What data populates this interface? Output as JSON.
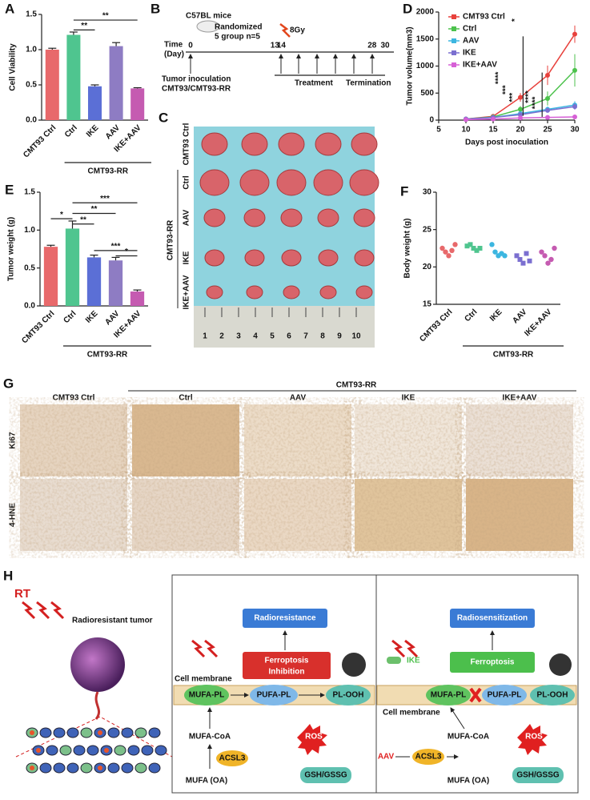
{
  "panel_labels": [
    "A",
    "B",
    "C",
    "D",
    "E",
    "F",
    "G",
    "H"
  ],
  "chart_data": [
    {
      "type": "bar",
      "ylabel": "Cell Viability",
      "categories": [
        "CMT93 Ctrl",
        "Ctrl",
        "IKE",
        "AAV",
        "IKE+AAV"
      ],
      "values": [
        1.0,
        1.21,
        0.48,
        1.05,
        0.45
      ],
      "errors": [
        0.02,
        0.04,
        0.02,
        0.05,
        0.01
      ],
      "colors": [
        "#e8696b",
        "#4fc58f",
        "#5b6fd6",
        "#8e7cc3",
        "#c55bb1"
      ],
      "ylim": [
        0,
        1.5
      ],
      "yticks": [
        {
          "value": 0,
          "label": "0.0"
        },
        {
          "value": 0.5,
          "label": "0.5"
        },
        {
          "value": 1,
          "label": "1.0"
        },
        {
          "value": 1.5,
          "label": "1.5"
        }
      ],
      "group_label": "CMT93-RR",
      "annotations": [
        "**",
        "**"
      ]
    },
    {
      "type": "line",
      "xlabel": "Days post inoculation",
      "ylabel": "Tumor volume(mm3)",
      "x": [
        10,
        15,
        20,
        25,
        30
      ],
      "xlim": [
        5,
        30
      ],
      "xticks": [
        5,
        10,
        15,
        20,
        25,
        30
      ],
      "ylim": [
        0,
        2000
      ],
      "yticks": [
        0,
        500,
        1000,
        1500,
        2000
      ],
      "series": [
        {
          "name": "CMT93 Ctrl",
          "color": "#e8413c",
          "values": [
            20,
            70,
            420,
            830,
            1590
          ],
          "errors": [
            5,
            20,
            80,
            180,
            160
          ]
        },
        {
          "name": "Ctrl",
          "color": "#4cc24c",
          "values": [
            20,
            60,
            200,
            400,
            920
          ],
          "errors": [
            5,
            15,
            60,
            130,
            300
          ]
        },
        {
          "name": "AAV",
          "color": "#3cb6e0",
          "values": [
            20,
            50,
            120,
            200,
            280
          ],
          "errors": [
            5,
            10,
            30,
            50,
            70
          ]
        },
        {
          "name": "IKE",
          "color": "#7b6fd0",
          "values": [
            20,
            50,
            100,
            180,
            250
          ],
          "errors": [
            5,
            10,
            25,
            40,
            60
          ]
        },
        {
          "name": "IKE+AAV",
          "color": "#d660d6",
          "values": [
            10,
            20,
            40,
            50,
            60
          ],
          "errors": [
            3,
            5,
            10,
            10,
            10
          ]
        }
      ],
      "annotations": [
        "****",
        "***",
        "***",
        "****",
        "****",
        "*"
      ]
    },
    {
      "type": "bar",
      "ylabel": "Tumor weight (g)",
      "categories": [
        "CMT93 Ctrl",
        "Ctrl",
        "IKE",
        "AAV",
        "IKE+AAV"
      ],
      "values": [
        0.78,
        1.02,
        0.64,
        0.6,
        0.19
      ],
      "errors": [
        0.02,
        0.1,
        0.03,
        0.04,
        0.02
      ],
      "colors": [
        "#e8696b",
        "#4fc58f",
        "#5b6fd6",
        "#8e7cc3",
        "#c55bb1"
      ],
      "ylim": [
        0,
        1.5
      ],
      "yticks": [
        {
          "value": 0,
          "label": "0.0"
        },
        {
          "value": 0.5,
          "label": "0.5"
        },
        {
          "value": 1,
          "label": "1.0"
        },
        {
          "value": 1.5,
          "label": "1.5"
        }
      ],
      "group_label": "CMT93-RR",
      "annotations": [
        "*",
        "**",
        "**",
        "***",
        "***",
        "*"
      ]
    },
    {
      "type": "dot",
      "ylabel": "Body weight (g)",
      "categories": [
        "CMT93 Ctrl",
        "Ctrl",
        "IKE",
        "AAV",
        "IKE+AAV"
      ],
      "values": [
        [
          22.5,
          22,
          21.5,
          22.2,
          23
        ],
        [
          22.8,
          23,
          22.5,
          22.2,
          22.5
        ],
        [
          23,
          22,
          21.5,
          21.8,
          21.5
        ],
        [
          21.5,
          21,
          20.5,
          21.8,
          20.8
        ],
        [
          22,
          21.5,
          20.5,
          21,
          22.5
        ]
      ],
      "colors": [
        "#e8696b",
        "#4fc58f",
        "#3cb6e0",
        "#7b6fd0",
        "#c55bb1"
      ],
      "ylim": [
        15,
        30
      ],
      "yticks": [
        15,
        20,
        25,
        30
      ],
      "group_label": "CMT93-RR"
    }
  ],
  "timeline": {
    "mice": "C57BL mice",
    "randomized": [
      "Randomized",
      "5 group n=5"
    ],
    "dose": "8Gy",
    "axis": [
      "Time",
      "(Day)"
    ],
    "days": [
      0,
      13,
      14,
      28,
      30
    ],
    "inoculation": [
      "Tumor inoculation",
      "CMT93/CMT93-RR"
    ],
    "treatment": "Treatment",
    "termination": "Termination"
  },
  "photo": {
    "rows": [
      "CMT93 Ctrl",
      "Ctrl",
      "AAV",
      "IKE",
      "IKE+AAV"
    ],
    "group": "CMT93-RR",
    "ruler": [
      1,
      2,
      3,
      4,
      5,
      6,
      7,
      8,
      9,
      10
    ]
  },
  "histology": {
    "group": "CMT93-RR",
    "columns": [
      "CMT93 Ctrl",
      "Ctrl",
      "AAV",
      "IKE",
      "IKE+AAV"
    ],
    "rows": [
      "Ki67",
      "4-HNE"
    ]
  },
  "mechanism": {
    "rt": "RT",
    "tumor": "Radioresistant tumor",
    "left": {
      "outcome": "Radioresistance",
      "state": [
        "Ferroptosis",
        "Inhibition"
      ],
      "membrane": "Cell membrane",
      "lipids": [
        "MUFA-PL",
        "PUFA-PL",
        "PL-OOH"
      ],
      "coa": "MUFA-CoA",
      "enzyme": "ACSL3",
      "oa": "MUFA (OA)",
      "ros": "ROS",
      "gsh": "GSH/GSSG"
    },
    "right": {
      "outcome": "Radiosensitization",
      "state": "Ferroptosis",
      "drug": "IKE",
      "lipids": [
        "MUFA-PL",
        "PUFA-PL",
        "PL-OOH"
      ],
      "membrane": "Cell membrane",
      "coa": "MUFA-CoA",
      "inhibitor": "AAV",
      "enzyme": "ACSL3",
      "oa": "MUFA (OA)",
      "ros": "ROS",
      "gsh": "GSH/GSSG"
    }
  }
}
